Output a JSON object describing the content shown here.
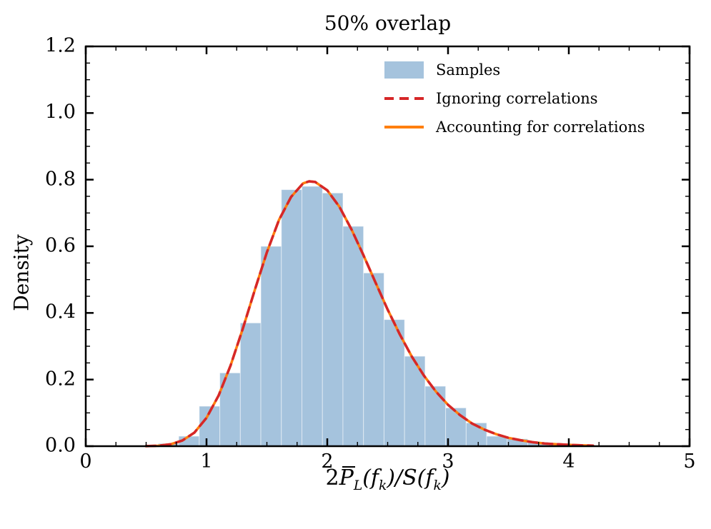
{
  "chart_data": {
    "type": "bar",
    "subtype": "histogram-with-density-curves",
    "title": "50% overlap",
    "ylabel": "Density",
    "xlabel_plain": "2P̄L(fk)/S(fk)",
    "xlabel_parts": {
      "coef": "2",
      "pbar": "P",
      "psub": "L",
      "arg1": "(f",
      "ksub1": "k",
      "mid": ")/S(f",
      "ksub2": "k",
      "close": ")"
    },
    "xlim": [
      0,
      5
    ],
    "ylim": [
      0,
      1.2
    ],
    "xticks": [
      0,
      1,
      2,
      3,
      4,
      5
    ],
    "xtick_labels": [
      "0",
      "1",
      "2",
      "3",
      "4",
      "5"
    ],
    "yticks": [
      0,
      0.2,
      0.4,
      0.6,
      0.8,
      1.0,
      1.2
    ],
    "ytick_labels": [
      "0.0",
      "0.2",
      "0.4",
      "0.6",
      "0.8",
      "1.0",
      "1.2"
    ],
    "x_minor_step": 0.25,
    "y_minor_step": 0.05,
    "grid": false,
    "legend_position": "upper center inside, no frame",
    "colors": {
      "histogram": "#a5c3dd",
      "red_dashed": "#d62728",
      "orange_solid": "#ff7f0e",
      "axis": "#000000"
    },
    "histogram": {
      "bin_start": 0.6,
      "bin_width": 0.17,
      "heights": [
        0.008,
        0.03,
        0.12,
        0.22,
        0.37,
        0.6,
        0.77,
        0.78,
        0.76,
        0.66,
        0.52,
        0.38,
        0.27,
        0.18,
        0.115,
        0.07,
        0.03,
        0.022,
        0.012,
        0.006
      ]
    },
    "curve_x": [
      0.5,
      0.6,
      0.7,
      0.8,
      0.9,
      1.0,
      1.1,
      1.2,
      1.3,
      1.4,
      1.5,
      1.6,
      1.7,
      1.8,
      1.85,
      1.9,
      2.0,
      2.1,
      2.2,
      2.3,
      2.4,
      2.5,
      2.6,
      2.7,
      2.8,
      2.9,
      3.0,
      3.1,
      3.2,
      3.3,
      3.4,
      3.5,
      3.6,
      3.7,
      3.8,
      3.9,
      4.0,
      4.1,
      4.2
    ],
    "curve_y": [
      0.0002,
      0.0013,
      0.0055,
      0.017,
      0.041,
      0.085,
      0.152,
      0.243,
      0.352,
      0.469,
      0.582,
      0.679,
      0.748,
      0.789,
      0.795,
      0.793,
      0.768,
      0.719,
      0.651,
      0.573,
      0.491,
      0.41,
      0.336,
      0.269,
      0.212,
      0.164,
      0.124,
      0.093,
      0.068,
      0.05,
      0.036,
      0.025,
      0.018,
      0.012,
      0.008,
      0.006,
      0.004,
      0.0026,
      0.0017
    ],
    "curves": [
      {
        "name": "Accounting for correlations",
        "style": "solid",
        "color": "#ff7f0e",
        "width": 3.5,
        "dash": ""
      },
      {
        "name": "Ignoring correlations",
        "style": "dashed",
        "color": "#d62728",
        "width": 3.5,
        "dash": "13 8"
      }
    ],
    "legend": [
      {
        "label": "Samples",
        "type": "patch",
        "color": "#a5c3dd"
      },
      {
        "label": "Ignoring correlations",
        "type": "dashed-line",
        "color": "#d62728"
      },
      {
        "label": "Accounting for correlations",
        "type": "solid-line",
        "color": "#ff7f0e"
      }
    ]
  }
}
